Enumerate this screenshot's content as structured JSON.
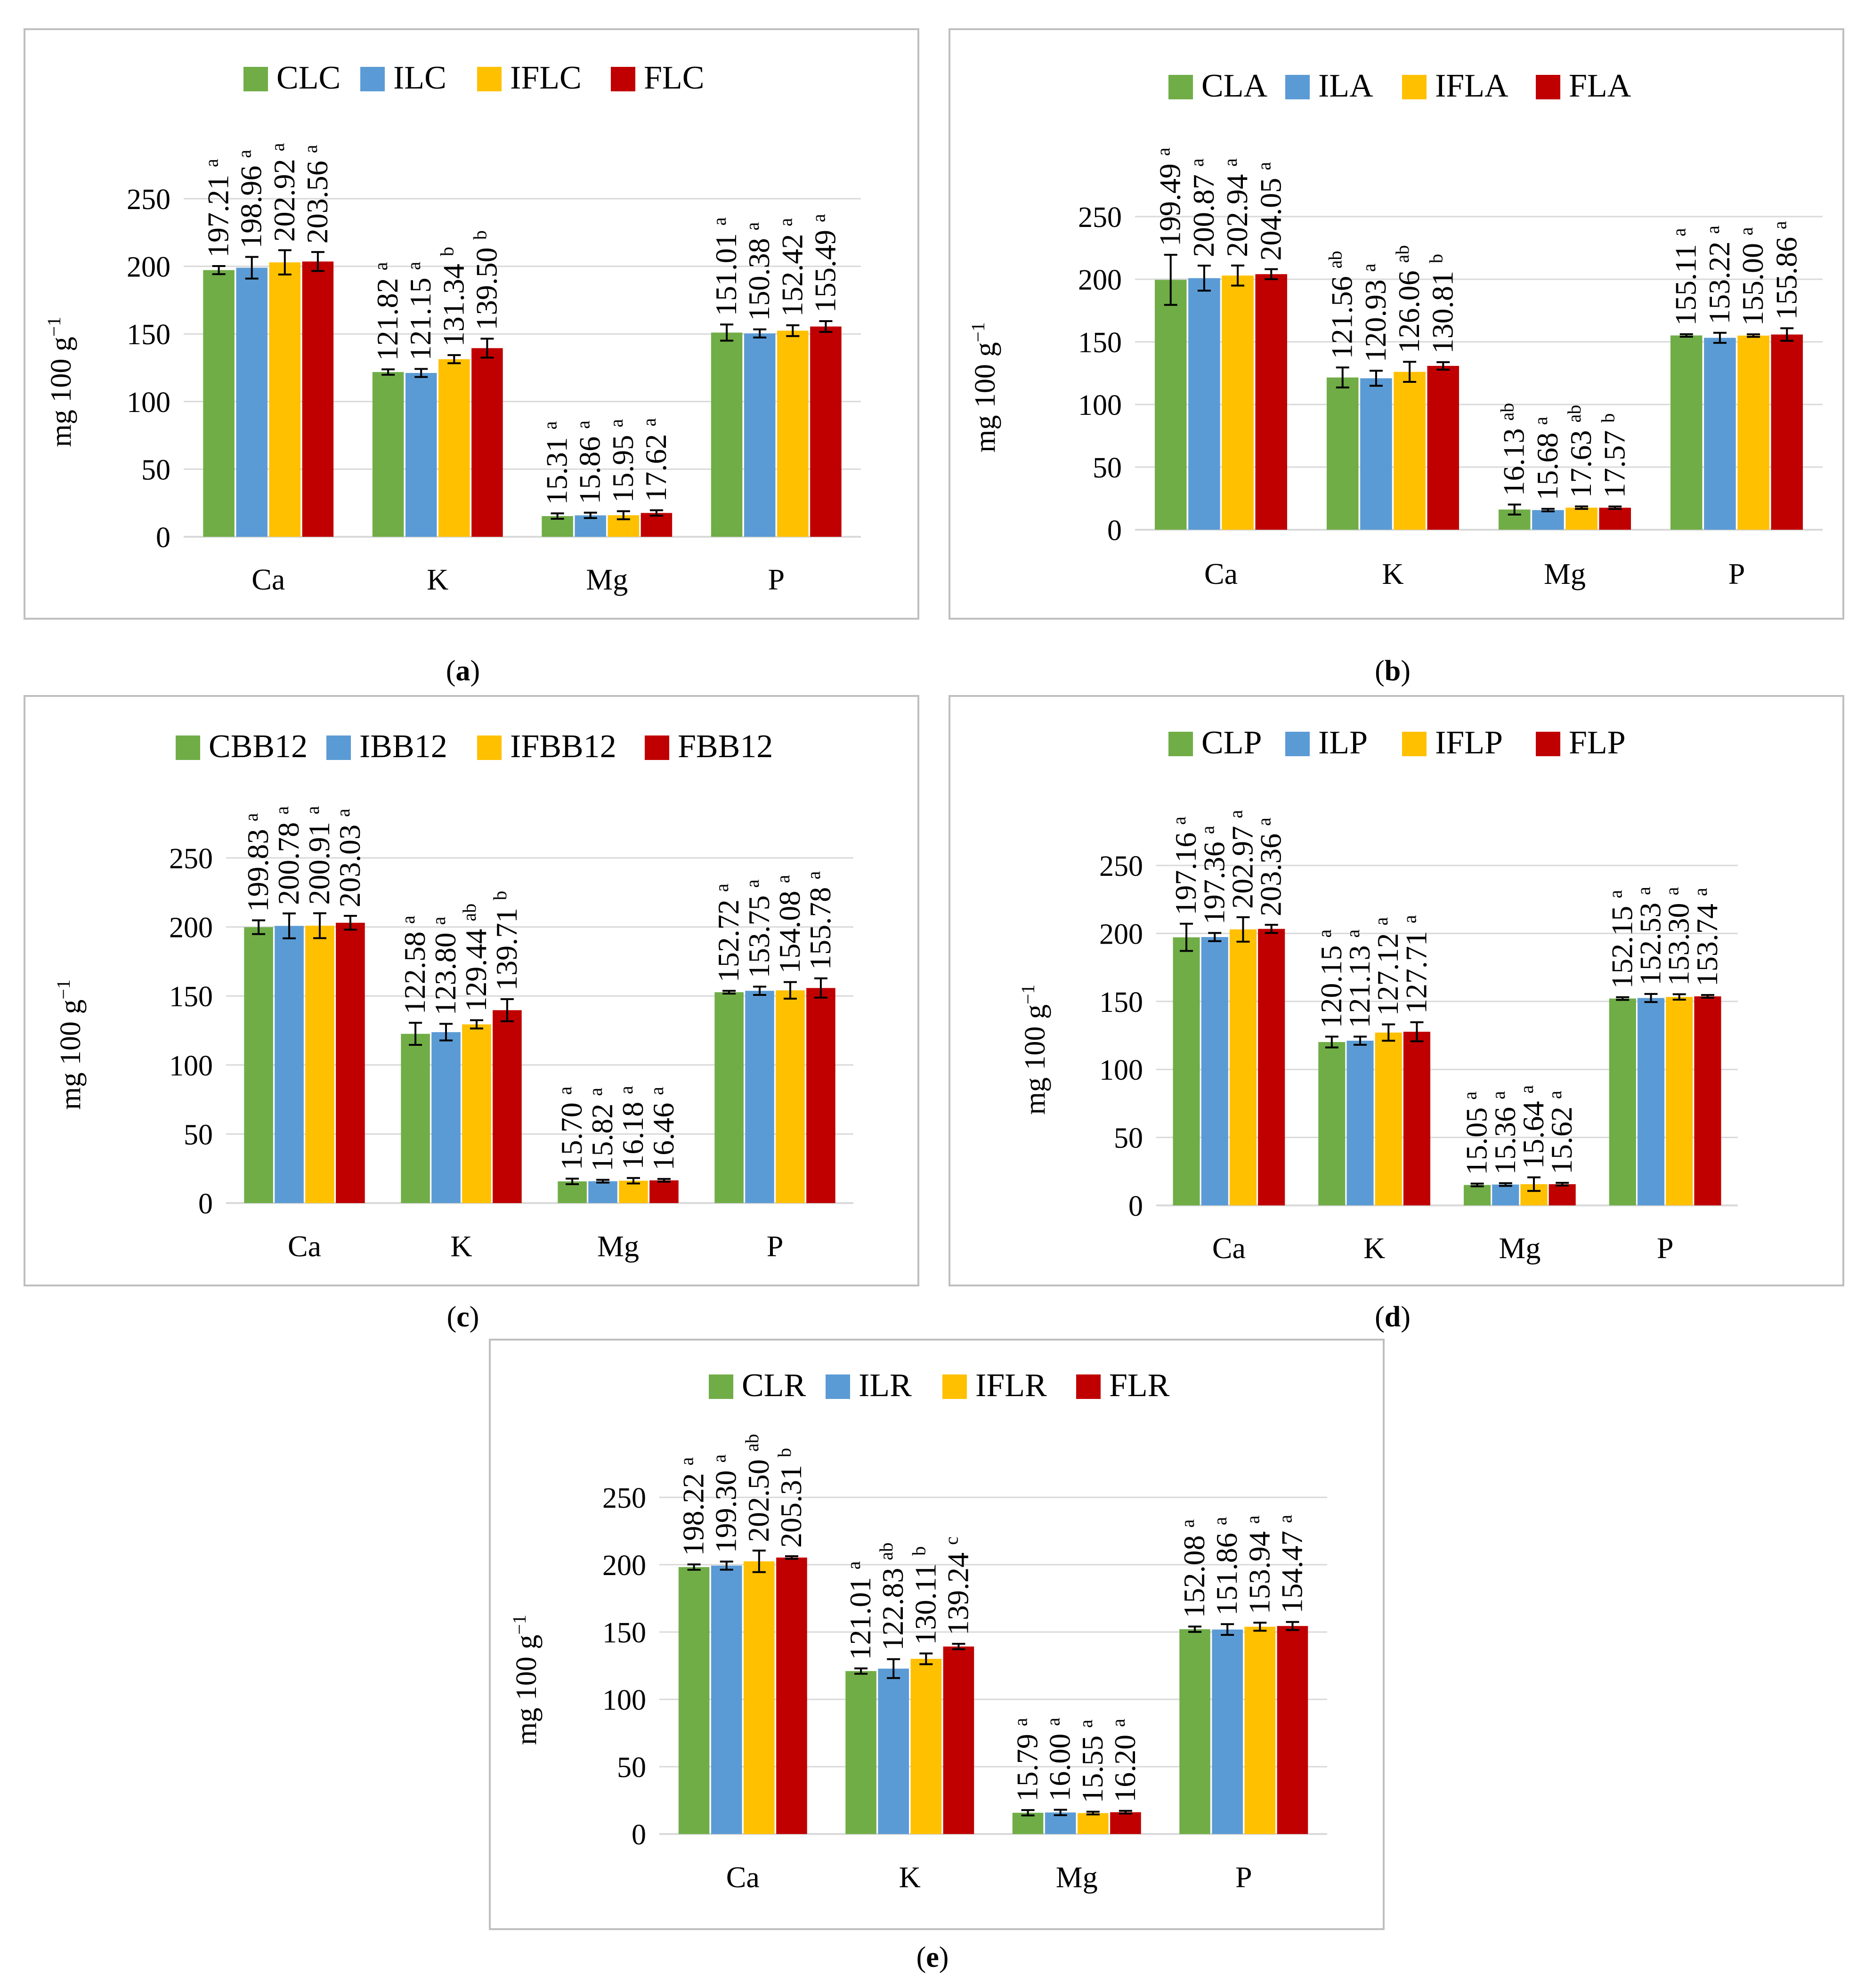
{
  "colors": {
    "green": "#70ad47",
    "blue": "#5b9bd5",
    "yellow": "#ffc000",
    "red": "#c00000",
    "grid": "#d9d9d9",
    "border": "#bfbfbf",
    "errorbar": "#000000"
  },
  "chart_data": [
    {
      "id": "a",
      "type": "bar",
      "caption": "a",
      "ylabel": "mg 100 g",
      "ylabel_sup": "−1",
      "ylim": [
        0,
        250
      ],
      "yticks": [
        "0",
        "50",
        "100",
        "150",
        "200",
        "250"
      ],
      "categories": [
        "Ca",
        "K",
        "Mg",
        "P"
      ],
      "series": [
        {
          "name": "CLC",
          "color": "green",
          "values": [
            197.21,
            121.82,
            15.31,
            151.01
          ],
          "errors": [
            3,
            2,
            2,
            6
          ],
          "labels": [
            "197.21",
            "121.82",
            "15.31",
            "151.01"
          ],
          "letters": [
            "a",
            "a",
            "a",
            "a"
          ]
        },
        {
          "name": "ILC",
          "color": "blue",
          "values": [
            198.96,
            121.15,
            15.86,
            150.38
          ],
          "errors": [
            8,
            3,
            2,
            3
          ],
          "labels": [
            "198.96",
            "121.15",
            "15.86",
            "150.38"
          ],
          "letters": [
            "a",
            "a",
            "a",
            "a"
          ]
        },
        {
          "name": "IFLC",
          "color": "yellow",
          "values": [
            202.92,
            131.34,
            15.95,
            152.42
          ],
          "errors": [
            9,
            3,
            3,
            4
          ],
          "labels": [
            "202.92",
            "131.34",
            "15.95",
            "152.42"
          ],
          "letters": [
            "a",
            "b",
            "a",
            "a"
          ]
        },
        {
          "name": "FLC",
          "color": "red",
          "values": [
            203.56,
            139.5,
            17.62,
            155.49
          ],
          "errors": [
            7,
            7,
            2,
            4
          ],
          "labels": [
            "203.56",
            "139.50",
            "17.62",
            "155.49"
          ],
          "letters": [
            "a",
            "b",
            "a",
            "a"
          ]
        }
      ]
    },
    {
      "id": "b",
      "type": "bar",
      "caption": "b",
      "ylabel": "mg 100 g",
      "ylabel_sup": "−1",
      "ylim": [
        0,
        250
      ],
      "yticks": [
        "0",
        "50",
        "100",
        "150",
        "200",
        "250"
      ],
      "categories": [
        "Ca",
        "K",
        "Mg",
        "P"
      ],
      "series": [
        {
          "name": "CLA",
          "color": "green",
          "values": [
            199.49,
            121.56,
            16.13,
            155.11
          ],
          "errors": [
            20,
            8,
            4,
            1
          ],
          "labels": [
            "199.49",
            "121.56",
            "16.13",
            "155.11"
          ],
          "letters": [
            "a",
            "ab",
            "ab",
            "a"
          ]
        },
        {
          "name": "ILA",
          "color": "blue",
          "values": [
            200.87,
            120.93,
            15.68,
            153.22
          ],
          "errors": [
            10,
            6,
            1,
            4
          ],
          "labels": [
            "200.87",
            "120.93",
            "15.68",
            "153.22"
          ],
          "letters": [
            "a",
            "a",
            "a",
            "a"
          ]
        },
        {
          "name": "IFLA",
          "color": "yellow",
          "values": [
            202.94,
            126.06,
            17.63,
            155.0
          ],
          "errors": [
            8,
            8,
            1,
            1
          ],
          "labels": [
            "202.94",
            "126.06",
            "17.63",
            "155.00"
          ],
          "letters": [
            "a",
            "ab",
            "ab",
            "a"
          ]
        },
        {
          "name": "FLA",
          "color": "red",
          "values": [
            204.05,
            130.81,
            17.57,
            155.86
          ],
          "errors": [
            4,
            3,
            1,
            5
          ],
          "labels": [
            "204.05",
            "130.81",
            "17.57",
            "155.86"
          ],
          "letters": [
            "a",
            "b",
            "b",
            "a"
          ]
        }
      ]
    },
    {
      "id": "c",
      "type": "bar",
      "caption": "c",
      "ylabel": "mg 100 g",
      "ylabel_sup": "−1",
      "ylim": [
        0,
        250
      ],
      "yticks": [
        "0",
        "50",
        "100",
        "150",
        "200",
        "250"
      ],
      "categories": [
        "Ca",
        "K",
        "Mg",
        "P"
      ],
      "series": [
        {
          "name": "CBB12",
          "color": "green",
          "values": [
            199.83,
            122.58,
            15.7,
            152.72
          ],
          "errors": [
            5,
            8,
            2,
            1
          ],
          "labels": [
            "199.83",
            "122.58",
            "15.70",
            "152.72"
          ],
          "letters": [
            "a",
            "a",
            "a",
            "a"
          ]
        },
        {
          "name": "IBB12",
          "color": "blue",
          "values": [
            200.78,
            123.8,
            15.82,
            153.75
          ],
          "errors": [
            9,
            6,
            1,
            3
          ],
          "labels": [
            "200.78",
            "123.80",
            "15.82",
            "153.75"
          ],
          "letters": [
            "a",
            "a",
            "a",
            "a"
          ]
        },
        {
          "name": "IFBB12",
          "color": "yellow",
          "values": [
            200.91,
            129.44,
            16.18,
            154.08
          ],
          "errors": [
            9,
            3,
            2,
            6
          ],
          "labels": [
            "200.91",
            "129.44",
            "16.18",
            "154.08"
          ],
          "letters": [
            "a",
            "ab",
            "a",
            "a"
          ]
        },
        {
          "name": "FBB12",
          "color": "red",
          "values": [
            203.03,
            139.71,
            16.46,
            155.78
          ],
          "errors": [
            5,
            8,
            1,
            7
          ],
          "labels": [
            "203.03",
            "139.71",
            "16.46",
            "155.78"
          ],
          "letters": [
            "a",
            "b",
            "a",
            "a"
          ]
        }
      ]
    },
    {
      "id": "d",
      "type": "bar",
      "caption": "d",
      "ylabel": "mg 100 g",
      "ylabel_sup": "−1",
      "ylim": [
        0,
        250
      ],
      "yticks": [
        "0",
        "50",
        "100",
        "150",
        "200",
        "250"
      ],
      "categories": [
        "Ca",
        "K",
        "Mg",
        "P"
      ],
      "series": [
        {
          "name": "CLP",
          "color": "green",
          "values": [
            197.16,
            120.15,
            15.05,
            152.15
          ],
          "errors": [
            10,
            4,
            1,
            1
          ],
          "labels": [
            "197.16",
            "120.15",
            "15.05",
            "152.15"
          ],
          "letters": [
            "a",
            "a",
            "a",
            "a"
          ]
        },
        {
          "name": "ILP",
          "color": "blue",
          "values": [
            197.36,
            121.13,
            15.36,
            152.53
          ],
          "errors": [
            3,
            3,
            1,
            3
          ],
          "labels": [
            "197.36",
            "121.13",
            "15.36",
            "152.53"
          ],
          "letters": [
            "a",
            "a",
            "a",
            "a"
          ]
        },
        {
          "name": "IFLP",
          "color": "yellow",
          "values": [
            202.97,
            127.12,
            15.64,
            153.3
          ],
          "errors": [
            9,
            6,
            5,
            2
          ],
          "labels": [
            "202.97",
            "127.12",
            "15.64",
            "153.30"
          ],
          "letters": [
            "a",
            "a",
            "a",
            "a"
          ]
        },
        {
          "name": "FLP",
          "color": "red",
          "values": [
            203.36,
            127.71,
            15.62,
            153.74
          ],
          "errors": [
            3,
            7,
            1,
            1
          ],
          "labels": [
            "203.36",
            "127.71",
            "15.62",
            "153.74"
          ],
          "letters": [
            "a",
            "a",
            "a",
            "a"
          ]
        }
      ]
    },
    {
      "id": "e",
      "type": "bar",
      "caption": "e",
      "ylabel": "mg 100 g",
      "ylabel_sup": "−1",
      "ylim": [
        0,
        250
      ],
      "yticks": [
        "0",
        "50",
        "100",
        "150",
        "200",
        "250"
      ],
      "categories": [
        "Ca",
        "K",
        "Mg",
        "P"
      ],
      "series": [
        {
          "name": "CLR",
          "color": "green",
          "values": [
            198.22,
            121.01,
            15.79,
            152.08
          ],
          "errors": [
            2,
            2,
            2,
            2
          ],
          "labels": [
            "198.22",
            "121.01",
            "15.79",
            "152.08"
          ],
          "letters": [
            "a",
            "a",
            "a",
            "a"
          ]
        },
        {
          "name": "ILR",
          "color": "blue",
          "values": [
            199.3,
            122.83,
            16.0,
            151.86
          ],
          "errors": [
            3,
            7,
            2,
            4
          ],
          "labels": [
            "199.30",
            "122.83",
            "16.00",
            "151.86"
          ],
          "letters": [
            "a",
            "ab",
            "a",
            "a"
          ]
        },
        {
          "name": "IFLR",
          "color": "yellow",
          "values": [
            202.5,
            130.11,
            15.55,
            153.94
          ],
          "errors": [
            8,
            4,
            1,
            3
          ],
          "labels": [
            "202.50",
            "130.11",
            "15.55",
            "153.94"
          ],
          "letters": [
            "ab",
            "b",
            "a",
            "a"
          ]
        },
        {
          "name": "FLR",
          "color": "red",
          "values": [
            205.31,
            139.24,
            16.2,
            154.47
          ],
          "errors": [
            1,
            2,
            1,
            3
          ],
          "labels": [
            "205.31",
            "139.24",
            "16.20",
            "154.47"
          ],
          "letters": [
            "b",
            "c",
            "a",
            "a"
          ]
        }
      ]
    }
  ]
}
